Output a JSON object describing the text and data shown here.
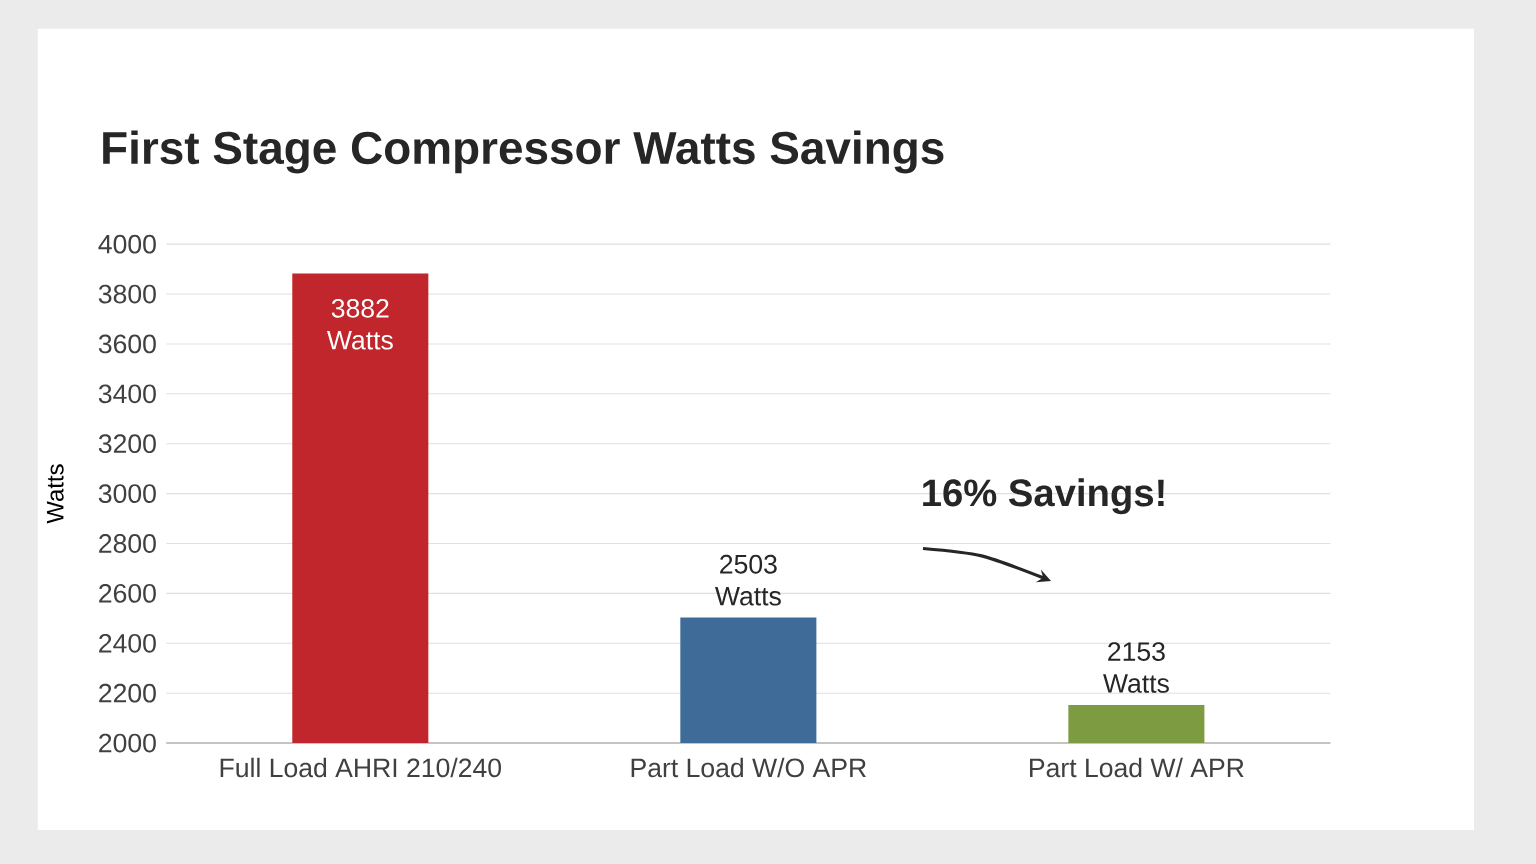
{
  "chart_data": {
    "type": "bar",
    "title": "First Stage Compressor Watts Savings",
    "ylabel": "Watts",
    "categories": [
      "Full Load AHRI 210/240",
      "Part Load W/O APR",
      "Part Load W/ APR"
    ],
    "values": [
      3882,
      2503,
      2153
    ],
    "colors": [
      "#c0262c",
      "#3f6b98",
      "#7d9c42"
    ],
    "value_labels": [
      "3882 Watts",
      "2503 Watts",
      "2153 Watts"
    ],
    "ylim": [
      2000,
      4000
    ],
    "yticks": [
      2000,
      2200,
      2400,
      2600,
      2800,
      3000,
      3200,
      3400,
      3600,
      3800,
      4000
    ],
    "grid": "y",
    "annotations": [
      "16% Savings!"
    ]
  }
}
